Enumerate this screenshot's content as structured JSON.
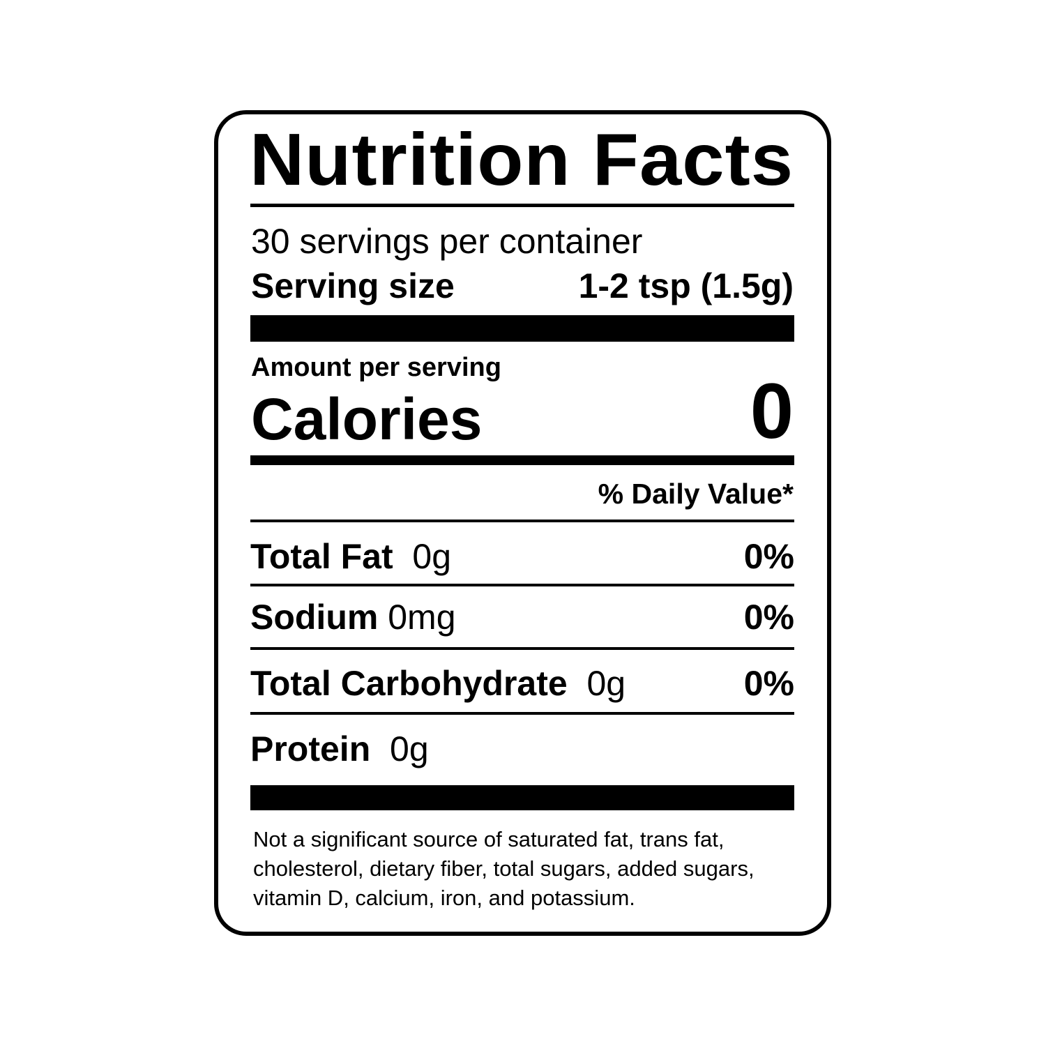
{
  "label": {
    "title": "Nutrition Facts",
    "servings_per_container": "30 servings per container",
    "serving_size_label": "Serving size",
    "serving_size_value": "1-2 tsp (1.5g)",
    "amount_per_serving": "Amount per serving",
    "calories_label": "Calories",
    "calories_value": "0",
    "daily_value_header": "% Daily Value*",
    "nutrients": [
      {
        "name": "Total Fat",
        "amount": "0g",
        "dv": "0%"
      },
      {
        "name": "Sodium",
        "amount": "0mg",
        "dv": "0%"
      },
      {
        "name": "Total Carbohydrate",
        "amount": "0g",
        "dv": "0%"
      },
      {
        "name": "Protein",
        "amount": "0g"
      }
    ],
    "footnote": "Not a significant source of saturated fat, trans fat, cholesterol, dietary fiber, total sugars, added sugars, vitamin D, calcium, iron, and potassium."
  }
}
